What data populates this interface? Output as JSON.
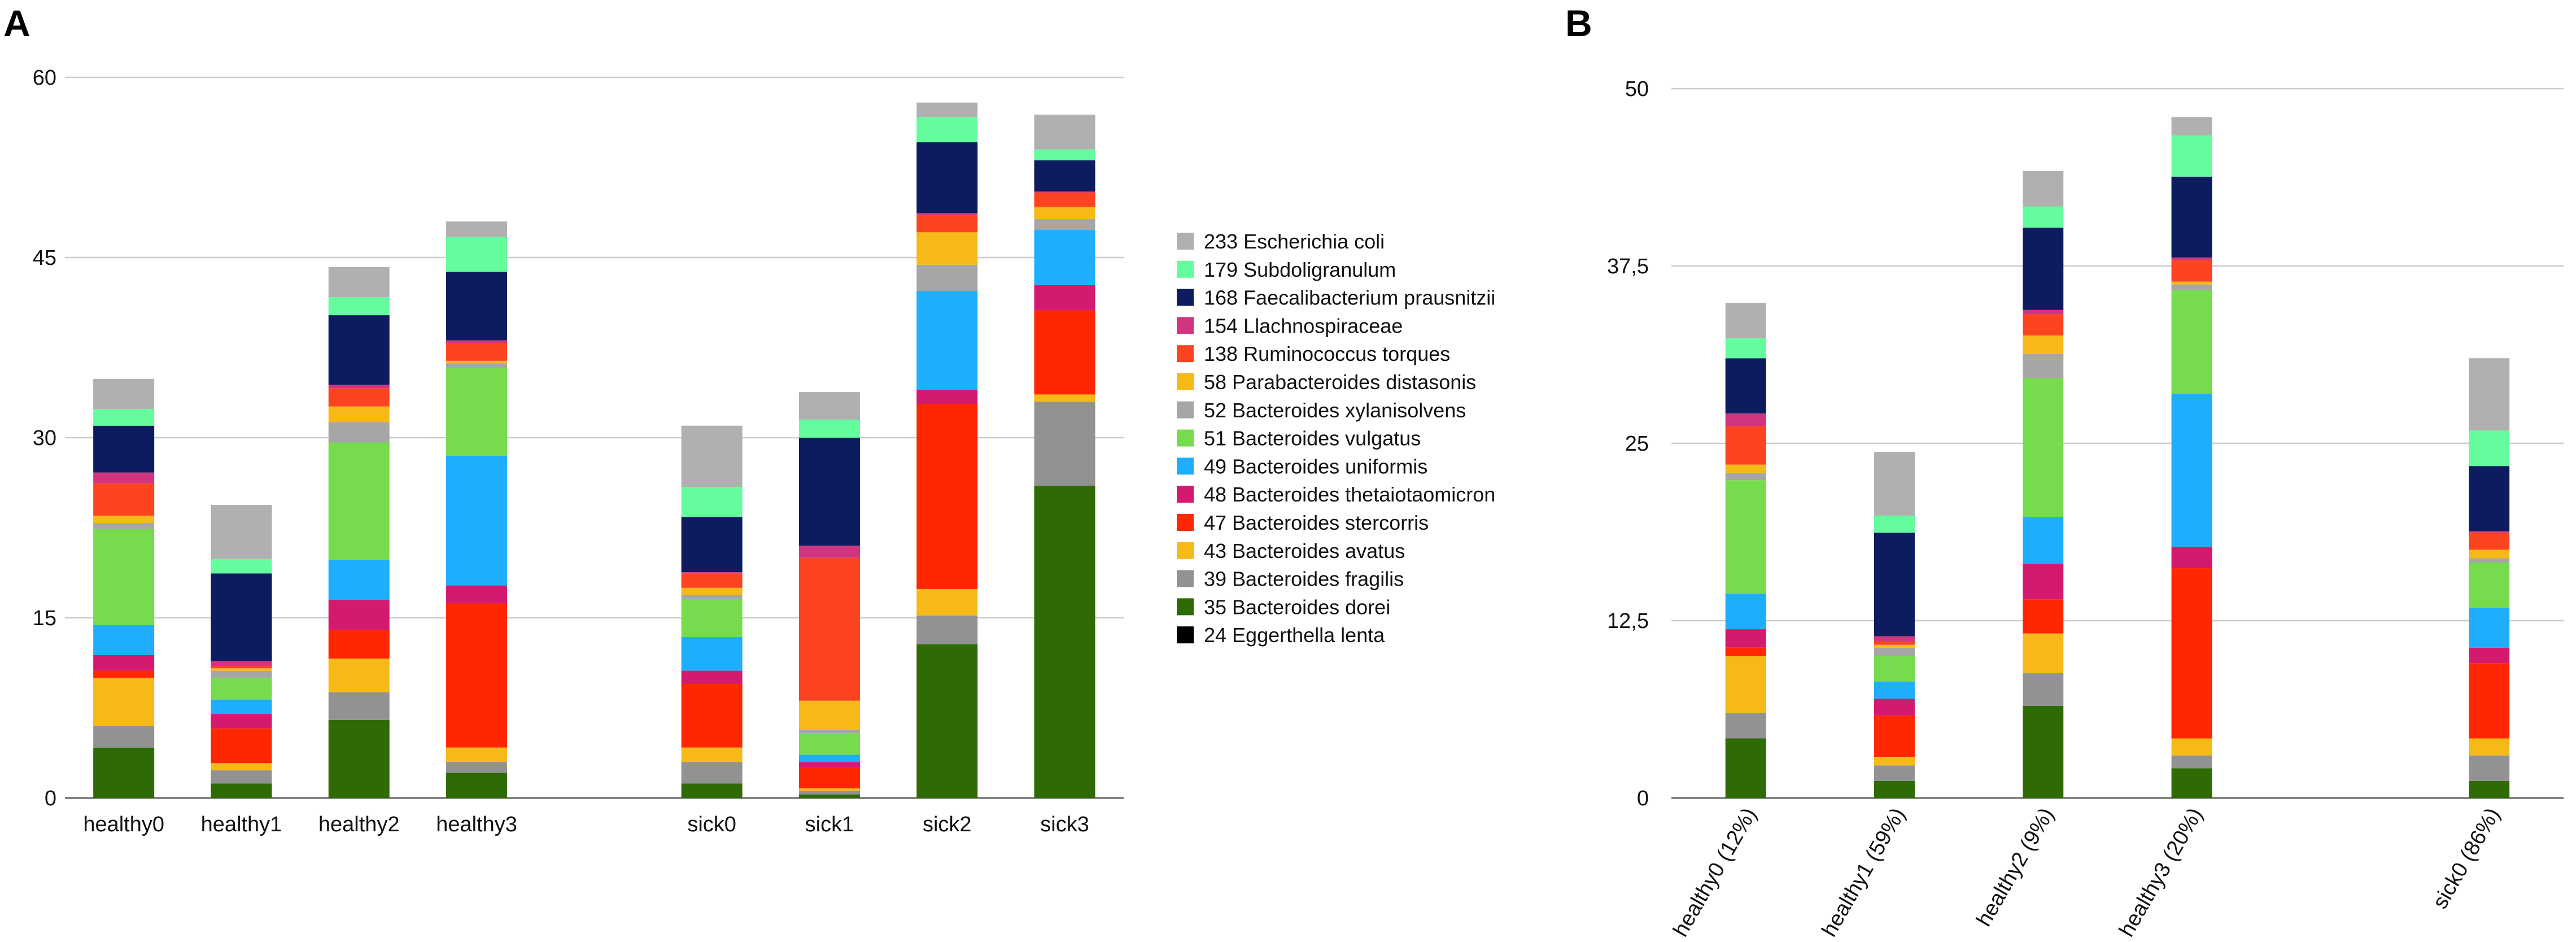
{
  "chart_data": [
    {
      "panel": "A",
      "type": "stacked-bar",
      "title": "",
      "xlabel": "",
      "ylabel": "",
      "ylim": [
        0,
        60
      ],
      "yticks": [
        0,
        15,
        30,
        45,
        60
      ],
      "grid": true,
      "legend_position": "right",
      "categories": [
        "healthy0",
        "healthy1",
        "healthy2",
        "healthy3",
        "",
        "sick0",
        "sick1",
        "sick2",
        "sick3"
      ],
      "series": [
        {
          "name": "35 Bacteroides dorei",
          "color": "#2e6b04",
          "values": [
            4.2,
            1.2,
            6.5,
            2.1,
            null,
            1.2,
            0.3,
            12.8,
            26.0
          ]
        },
        {
          "name": "39 Bacteroides fragilis",
          "color": "#929292",
          "values": [
            1.8,
            1.1,
            2.3,
            0.9,
            null,
            1.8,
            0.3,
            2.4,
            7.0
          ]
        },
        {
          "name": "43 Bacteroides avatus",
          "color": "#f7b917",
          "values": [
            4.0,
            0.6,
            2.8,
            1.2,
            null,
            1.2,
            0.2,
            2.2,
            0.6
          ]
        },
        {
          "name": "47 Bacteroides stercorris",
          "color": "#fe2700",
          "values": [
            0.6,
            2.9,
            2.4,
            12.0,
            null,
            5.3,
            1.7,
            15.4,
            7.0
          ]
        },
        {
          "name": "48 Bacteroides  thetaiotaomicron",
          "color": "#d41a6e",
          "values": [
            1.3,
            1.2,
            2.5,
            1.5,
            null,
            1.1,
            0.5,
            1.2,
            2.1
          ]
        },
        {
          "name": "49 Bacteroides uniformis",
          "color": "#1fadfe",
          "values": [
            2.5,
            1.2,
            3.3,
            10.8,
            null,
            2.8,
            0.6,
            8.2,
            4.6
          ]
        },
        {
          "name": "51 Bacteroides vulgatus",
          "color": "#76db4d",
          "values": [
            8.0,
            1.8,
            9.8,
            7.3,
            null,
            3.2,
            1.8,
            0.0,
            0.0
          ]
        },
        {
          "name": "52 Bacteroides  xylanisolvens",
          "color": "#a6a6a6",
          "values": [
            0.5,
            0.6,
            1.7,
            0.4,
            null,
            0.3,
            0.3,
            2.2,
            0.9
          ]
        },
        {
          "name": "58 Parabacteroides distasonis",
          "color": "#f7b917",
          "values": [
            0.6,
            0.2,
            1.3,
            0.2,
            null,
            0.6,
            2.4,
            2.7,
            1.0
          ]
        },
        {
          "name": "138 Ruminococcus torques",
          "color": "#fc4420",
          "values": [
            2.7,
            0.2,
            1.5,
            1.5,
            null,
            1.2,
            11.9,
            1.4,
            1.2
          ]
        },
        {
          "name": "154 Llachnospiraceae",
          "color": "#d1357f",
          "values": [
            0.9,
            0.4,
            0.3,
            0.2,
            null,
            0.1,
            1.0,
            0.2,
            0.1
          ]
        },
        {
          "name": "168 Faecalibacterium prausnitzii",
          "color": "#0c1c5e",
          "values": [
            3.9,
            7.3,
            5.8,
            5.7,
            null,
            4.6,
            9.0,
            5.9,
            2.6
          ]
        },
        {
          "name": "179 Subdoligranulum",
          "color": "#65fc9e",
          "values": [
            1.4,
            1.2,
            1.5,
            2.9,
            null,
            2.5,
            1.5,
            2.1,
            0.9
          ]
        },
        {
          "name": "233 Escherichia coli",
          "color": "#b0b0b0",
          "values": [
            2.5,
            4.5,
            2.5,
            1.3,
            null,
            5.1,
            2.3,
            1.2,
            2.9
          ]
        },
        {
          "name": "24 Eggerthella lenta",
          "color": "#000000",
          "values": [
            0,
            0,
            0,
            0,
            null,
            0,
            0,
            0,
            0
          ]
        }
      ]
    },
    {
      "panel": "B",
      "type": "stacked-bar",
      "title": "",
      "xlabel": "",
      "ylabel": "",
      "ylim": [
        0,
        50
      ],
      "yticks": [
        0,
        12.5,
        25,
        37.5,
        50
      ],
      "ytick_labels": [
        "0",
        "12,5",
        "25",
        "37,5",
        "50"
      ],
      "grid": true,
      "categories": [
        "healthy0 (12%)",
        "healthy1 (59%)",
        "healthy2 (9%)",
        "healthy3 (20%)",
        "",
        "sick0 (86%)"
      ],
      "series": [
        {
          "name": "35 Bacteroides dorei",
          "color": "#2e6b04",
          "values": [
            4.2,
            1.2,
            6.5,
            2.1,
            null,
            1.2
          ]
        },
        {
          "name": "39 Bacteroides fragilis",
          "color": "#929292",
          "values": [
            1.8,
            1.1,
            2.3,
            0.9,
            null,
            1.8
          ]
        },
        {
          "name": "43 Bacteroides avatus",
          "color": "#f7b917",
          "values": [
            4.0,
            0.6,
            2.8,
            1.2,
            null,
            1.2
          ]
        },
        {
          "name": "47 Bacteroides stercorris",
          "color": "#fe2700",
          "values": [
            0.6,
            2.9,
            2.4,
            12.0,
            null,
            5.3
          ]
        },
        {
          "name": "48 Bacteroides  thetaiotaomicron",
          "color": "#d41a6e",
          "values": [
            1.3,
            1.2,
            2.5,
            1.5,
            null,
            1.1
          ]
        },
        {
          "name": "49 Bacteroides uniformis",
          "color": "#1fadfe",
          "values": [
            2.5,
            1.2,
            3.3,
            10.8,
            null,
            2.8
          ]
        },
        {
          "name": "51 Bacteroides vulgatus",
          "color": "#76db4d",
          "values": [
            8.0,
            1.8,
            9.8,
            7.3,
            null,
            3.2
          ]
        },
        {
          "name": "52 Bacteroides  xylanisolvens",
          "color": "#a6a6a6",
          "values": [
            0.5,
            0.6,
            1.7,
            0.4,
            null,
            0.3
          ]
        },
        {
          "name": "58 Parabacteroides distasonis",
          "color": "#f7b917",
          "values": [
            0.6,
            0.2,
            1.3,
            0.2,
            null,
            0.6
          ]
        },
        {
          "name": "138 Ruminococcus torques",
          "color": "#fc4420",
          "values": [
            2.7,
            0.2,
            1.5,
            1.5,
            null,
            1.2
          ]
        },
        {
          "name": "154 Llachnospiraceae",
          "color": "#d1357f",
          "values": [
            0.9,
            0.4,
            0.3,
            0.2,
            null,
            0.1
          ]
        },
        {
          "name": "168 Faecalibacterium prausnitzii",
          "color": "#0c1c5e",
          "values": [
            3.9,
            7.3,
            5.8,
            5.7,
            null,
            4.6
          ]
        },
        {
          "name": "179 Subdoligranulum",
          "color": "#65fc9e",
          "values": [
            1.4,
            1.2,
            1.5,
            2.9,
            null,
            2.5
          ]
        },
        {
          "name": "233 Escherichia coli",
          "color": "#b0b0b0",
          "values": [
            2.5,
            4.5,
            2.5,
            1.3,
            null,
            5.1
          ]
        },
        {
          "name": "24 Eggerthella lenta",
          "color": "#000000",
          "values": [
            0,
            0,
            0,
            0,
            null,
            0
          ]
        }
      ]
    }
  ],
  "legend": {
    "entries": [
      {
        "label": "233 Escherichia coli",
        "color": "#b0b0b0"
      },
      {
        "label": "179 Subdoligranulum",
        "color": "#65fc9e"
      },
      {
        "label": "168 Faecalibacterium prausnitzii",
        "color": "#0c1c5e"
      },
      {
        "label": "154 Llachnospiraceae",
        "color": "#d1357f"
      },
      {
        "label": "138 Ruminococcus torques",
        "color": "#fc4420"
      },
      {
        "label": "58 Parabacteroides distasonis",
        "color": "#f7b917"
      },
      {
        "label": "52 Bacteroides  xylanisolvens",
        "color": "#a6a6a6"
      },
      {
        "label": "51 Bacteroides vulgatus",
        "color": "#76db4d"
      },
      {
        "label": "49 Bacteroides uniformis",
        "color": "#1fadfe"
      },
      {
        "label": "48 Bacteroides  thetaiotaomicron",
        "color": "#d41a6e"
      },
      {
        "label": "47 Bacteroides stercorris",
        "color": "#fe2700"
      },
      {
        "label": "43 Bacteroides  avatus",
        "color": "#f7b917"
      },
      {
        "label": "39 Bacteroides fragilis",
        "color": "#929292"
      },
      {
        "label": "35 Bacteroides dorei",
        "color": "#2e6b04"
      },
      {
        "label": "24 Eggerthella lenta",
        "color": "#000000"
      }
    ]
  }
}
